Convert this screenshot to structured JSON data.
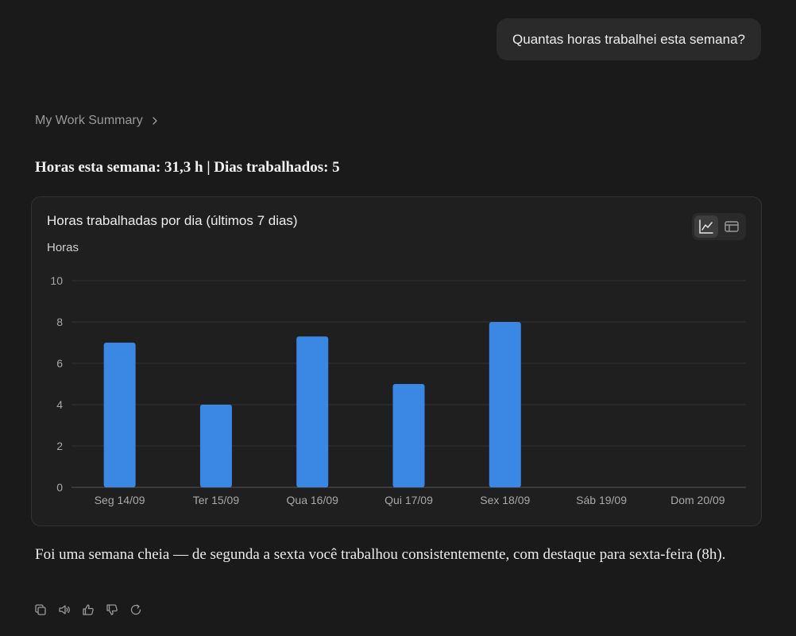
{
  "conversation": {
    "user_message": "Quantas horas trabalhei esta semana?"
  },
  "source": {
    "breadcrumb_label": "My Work Summary"
  },
  "summary": {
    "text": "Horas esta semana: 31,3 h | Dias trabalhados: 5"
  },
  "chart_toggle": {
    "options": [
      "chart-view",
      "table-view"
    ],
    "selected": "chart-view"
  },
  "chart_data": {
    "type": "bar",
    "title": "Horas trabalhadas por dia (últimos 7 dias)",
    "ylabel": "Horas",
    "xlabel": "",
    "categories": [
      "Seg 14/09",
      "Ter 15/09",
      "Qua 16/09",
      "Qui 17/09",
      "Sex 18/09",
      "Sáb 19/09",
      "Dom 20/09"
    ],
    "values": [
      7,
      4,
      7.3,
      5,
      8,
      0,
      0
    ],
    "ylim": [
      0,
      10
    ],
    "yticks": [
      0,
      2,
      4,
      6,
      8,
      10
    ],
    "grid": true,
    "bar_color": "#3b87e4"
  },
  "answer": {
    "text": "Foi uma semana cheia — de segunda a sexta você trabalhou consistentemente, com destaque para sexta-feira (8h)."
  },
  "message_actions": [
    "copy-icon",
    "speaker-icon",
    "thumbs-up-icon",
    "thumbs-down-icon",
    "regenerate-icon"
  ]
}
